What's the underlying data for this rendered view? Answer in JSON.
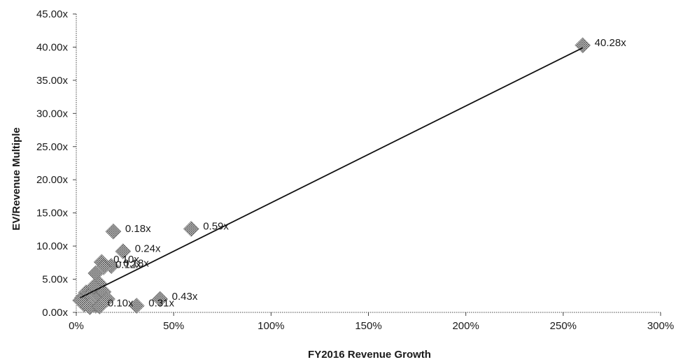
{
  "chart_data": {
    "type": "scatter",
    "title": "",
    "xlabel": "FY2016 Revenue Growth",
    "ylabel": "EV/Revenue Multiple",
    "xlim": [
      0,
      300
    ],
    "ylim": [
      0,
      45
    ],
    "x_ticks": [
      "0%",
      "50%",
      "100%",
      "150%",
      "200%",
      "250%",
      "300%"
    ],
    "y_ticks": [
      "0.00x",
      "5.00x",
      "10.00x",
      "15.00x",
      "20.00x",
      "25.00x",
      "30.00x",
      "35.00x",
      "40.00x",
      "45.00x"
    ],
    "grid": false,
    "legend": "none",
    "marker_color": "#8a8a8a",
    "trendline": {
      "x": [
        2,
        260
      ],
      "y": [
        2.2,
        39.9
      ]
    },
    "points": [
      {
        "x": 260,
        "y": 40.28,
        "label": "40.28x"
      },
      {
        "x": 59,
        "y": 12.6,
        "label": "0.59x"
      },
      {
        "x": 19,
        "y": 12.2,
        "label": "0.18x"
      },
      {
        "x": 24,
        "y": 9.2,
        "label": "0.24x"
      },
      {
        "x": 13,
        "y": 7.6,
        "label": "0.10x"
      },
      {
        "x": 18,
        "y": 7.0,
        "label": "0.18x"
      },
      {
        "x": 14,
        "y": 6.8,
        "label": "0.12x"
      },
      {
        "x": 43,
        "y": 2.0,
        "label": "0.43x"
      },
      {
        "x": 31,
        "y": 1.0,
        "label": "0.31x"
      },
      {
        "x": 10,
        "y": 1.0,
        "label": "0.10x"
      },
      {
        "x": 10,
        "y": 5.9,
        "label": ""
      },
      {
        "x": 12,
        "y": 4.3,
        "label": ""
      },
      {
        "x": 8,
        "y": 3.6,
        "label": ""
      },
      {
        "x": 5,
        "y": 3.0,
        "label": ""
      },
      {
        "x": 7,
        "y": 2.6,
        "label": ""
      },
      {
        "x": 3,
        "y": 2.2,
        "label": ""
      },
      {
        "x": 6,
        "y": 1.8,
        "label": ""
      },
      {
        "x": 9,
        "y": 1.5,
        "label": ""
      },
      {
        "x": 11,
        "y": 2.6,
        "label": ""
      },
      {
        "x": 14,
        "y": 3.1,
        "label": ""
      },
      {
        "x": 4,
        "y": 1.2,
        "label": ""
      },
      {
        "x": 7,
        "y": 0.8,
        "label": ""
      },
      {
        "x": 12,
        "y": 0.9,
        "label": ""
      },
      {
        "x": 16,
        "y": 2.0,
        "label": ""
      },
      {
        "x": 2,
        "y": 1.8,
        "label": ""
      },
      {
        "x": 9,
        "y": 3.9,
        "label": ""
      }
    ]
  }
}
